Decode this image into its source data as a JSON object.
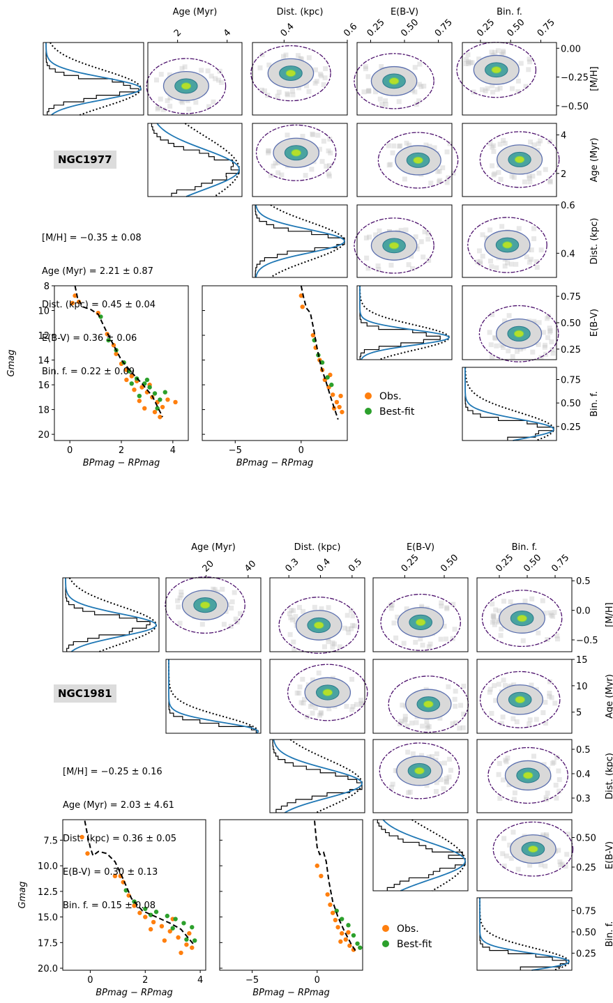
{
  "colors": {
    "observed": "#ff7f0e",
    "best_fit": "#2ca02c",
    "hist_fit": "#1f77b4",
    "isochrone": "#000000",
    "contour_outer": "#4b0f6b",
    "contour_mid": "#5b6fae"
  },
  "figures": [
    {
      "cluster": "NGC1977",
      "stats": [
        "[M/H] = −0.35 ± 0.08",
        "Age (Myr) = 2.21 ± 0.87",
        "Dist. (kpc) = 0.45 ± 0.04",
        "E(B-V) = 0.36 ± 0.06",
        "Bin. f. = 0.22 ± 0.09"
      ],
      "params": [
        {
          "label": "[M/H]",
          "range": [
            -0.58,
            0.05
          ],
          "ticks": [
            "0.00",
            "−0.25",
            "−0.50"
          ],
          "tick_values": [
            0.0,
            -0.25,
            -0.5
          ],
          "mean": -0.35,
          "sigma": 0.08
        },
        {
          "label": "Age (Myr)",
          "range": [
            0.8,
            4.6
          ],
          "ticks": [
            "2",
            "4"
          ],
          "tick_values": [
            2,
            4
          ],
          "mean": 2.21,
          "sigma": 0.87
        },
        {
          "label": "Dist. (kpc)",
          "range": [
            0.3,
            0.6
          ],
          "ticks": [
            "0.4",
            "0.6"
          ],
          "tick_values": [
            0.4,
            0.6
          ],
          "mean": 0.45,
          "sigma": 0.04
        },
        {
          "label": "E(B-V)",
          "range": [
            0.15,
            0.85
          ],
          "ticks": [
            "0.25",
            "0.50",
            "0.75"
          ],
          "tick_values": [
            0.25,
            0.5,
            0.75
          ],
          "mean": 0.36,
          "sigma": 0.06
        },
        {
          "label": "Bin. f.",
          "range": [
            0.1,
            0.88
          ],
          "ticks": [
            "0.25",
            "0.50",
            "0.75"
          ],
          "tick_values": [
            0.25,
            0.5,
            0.75
          ],
          "mean": 0.22,
          "sigma": 0.09
        }
      ],
      "cmd": {
        "ylabel": "Gmag",
        "xlabel": "BPmag − RPmag",
        "ylim": [
          20.5,
          8
        ],
        "yticks": [
          "8",
          "10",
          "12",
          "14",
          "16",
          "18",
          "20"
        ],
        "ytick_values": [
          8,
          10,
          12,
          14,
          16,
          18,
          20
        ],
        "panel1": {
          "xlim": [
            -0.6,
            4.6
          ],
          "xticks": [
            "0",
            "2",
            "4"
          ],
          "xtick_values": [
            0,
            2,
            4
          ],
          "isochrone": [
            [
              0.2,
              8.0
            ],
            [
              0.3,
              9.0
            ],
            [
              0.5,
              9.7
            ],
            [
              0.8,
              9.9
            ],
            [
              1.1,
              10.3
            ],
            [
              1.4,
              11.6
            ],
            [
              1.7,
              12.8
            ],
            [
              2.0,
              14.0
            ],
            [
              2.4,
              15.0
            ],
            [
              2.8,
              15.9
            ],
            [
              3.2,
              16.9
            ],
            [
              3.6,
              18.6
            ]
          ],
          "obs": [
            [
              0.1,
              9.4
            ],
            [
              0.2,
              8.8
            ],
            [
              0.35,
              9.3
            ],
            [
              1.1,
              10.2
            ],
            [
              1.45,
              11.9
            ],
            [
              1.7,
              12.8
            ],
            [
              1.8,
              13.5
            ],
            [
              2.0,
              14.3
            ],
            [
              2.2,
              14.8
            ],
            [
              2.4,
              15.3
            ],
            [
              2.6,
              15.7
            ],
            [
              2.8,
              16.2
            ],
            [
              3.0,
              16.6
            ],
            [
              3.2,
              17.0
            ],
            [
              3.4,
              17.4
            ],
            [
              3.6,
              17.8
            ],
            [
              3.8,
              17.2
            ],
            [
              4.1,
              17.4
            ],
            [
              3.3,
              18.2
            ],
            [
              3.5,
              18.6
            ],
            [
              2.9,
              17.9
            ],
            [
              2.7,
              17.3
            ],
            [
              2.5,
              16.4
            ],
            [
              3.1,
              16.0
            ],
            [
              2.2,
              15.6
            ]
          ],
          "fit": [
            [
              1.2,
              10.5
            ],
            [
              1.5,
              12.4
            ],
            [
              1.8,
              13.2
            ],
            [
              2.1,
              14.2
            ],
            [
              2.3,
              14.9
            ],
            [
              2.6,
              15.5
            ],
            [
              2.9,
              15.9
            ],
            [
              3.1,
              16.2
            ],
            [
              3.3,
              16.7
            ],
            [
              3.5,
              17.2
            ],
            [
              3.7,
              16.6
            ],
            [
              2.7,
              16.9
            ],
            [
              3.4,
              17.9
            ],
            [
              2.4,
              15.9
            ],
            [
              3.0,
              15.6
            ]
          ]
        },
        "panel2": {
          "xlim": [
            -7.5,
            3.5
          ],
          "xticks": [
            "−5",
            "0"
          ],
          "xtick_values": [
            -5,
            0
          ],
          "isochrone": [
            [
              0.0,
              8.0
            ],
            [
              0.2,
              9.0
            ],
            [
              0.4,
              9.8
            ],
            [
              0.7,
              10.2
            ],
            [
              0.95,
              11.5
            ],
            [
              1.2,
              13.0
            ],
            [
              1.5,
              14.5
            ],
            [
              1.9,
              15.8
            ],
            [
              2.3,
              17.2
            ],
            [
              2.8,
              18.8
            ]
          ],
          "obs": [
            [
              0.0,
              8.8
            ],
            [
              0.1,
              9.7
            ],
            [
              0.9,
              12.0
            ],
            [
              1.1,
              13.0
            ],
            [
              1.4,
              14.0
            ],
            [
              1.6,
              14.8
            ],
            [
              1.8,
              15.6
            ],
            [
              2.1,
              16.2
            ],
            [
              2.4,
              16.8
            ],
            [
              2.7,
              17.4
            ],
            [
              2.9,
              17.8
            ],
            [
              3.1,
              18.2
            ],
            [
              2.5,
              17.9
            ],
            [
              2.2,
              15.2
            ],
            [
              3.0,
              16.9
            ]
          ],
          "fit": [
            [
              1.0,
              12.4
            ],
            [
              1.3,
              13.6
            ],
            [
              1.6,
              14.2
            ],
            [
              2.0,
              15.4
            ],
            [
              2.3,
              16.0
            ]
          ]
        }
      },
      "legend": [
        "Obs.",
        "Best-fit"
      ]
    },
    {
      "cluster": "NGC1981",
      "stats": [
        "[M/H] = −0.25 ± 0.16",
        "Age (Myr) = 2.03 ± 4.61",
        "Dist. (kpc) = 0.36 ± 0.05",
        "E(B-V) = 0.30 ± 0.13",
        "Bin. f. = 0.15 ± 0.08"
      ],
      "params": [
        {
          "label": "[M/H]",
          "range": [
            -0.7,
            0.55
          ],
          "ticks": [
            "0.5",
            "0.0",
            "−0.5"
          ],
          "tick_values": [
            0.5,
            0.0,
            -0.5
          ],
          "mean": -0.25,
          "sigma": 0.16
        },
        {
          "label": "Age (Myr)",
          "range": [
            1,
            46
          ],
          "ticks": [
            "20",
            "40"
          ],
          "tick_values": [
            20,
            40
          ],
          "mean": 2.03,
          "sigma": 4.61
        },
        {
          "label": "Dist. (kpc)",
          "range": [
            0.24,
            0.54
          ],
          "ticks": [
            "0.3",
            "0.4",
            "0.5"
          ],
          "tick_values": [
            0.3,
            0.4,
            0.5
          ],
          "mean": 0.36,
          "sigma": 0.05
        },
        {
          "label": "E(B-V)",
          "range": [
            0.05,
            0.65
          ],
          "ticks": [
            "0.25",
            "0.50"
          ],
          "tick_values": [
            0.25,
            0.5
          ],
          "mean": 0.3,
          "sigma": 0.13
        },
        {
          "label": "Bin. f.",
          "range": [
            0.05,
            0.9
          ],
          "ticks": [
            "0.25",
            "0.50",
            "0.75"
          ],
          "tick_values": [
            0.25,
            0.5,
            0.75
          ],
          "mean": 0.15,
          "sigma": 0.08
        }
      ],
      "row_ticks": {
        "1": {
          "ticks": [
            "15",
            "10",
            "5"
          ],
          "tick_values": [
            15,
            10,
            5
          ],
          "range": [
            1,
            15
          ]
        }
      },
      "cmd": {
        "ylabel": "Gmag",
        "xlabel": "BPmag − RPmag",
        "ylim": [
          20.2,
          5.5
        ],
        "yticks": [
          "7.5",
          "10.0",
          "12.5",
          "15.0",
          "17.5",
          "20.0"
        ],
        "ytick_values": [
          7.5,
          10,
          12.5,
          15,
          17.5,
          20
        ],
        "panel1": {
          "xlim": [
            -1.0,
            4.2
          ],
          "xticks": [
            "0",
            "2",
            "4"
          ],
          "xtick_values": [
            0,
            2,
            4
          ],
          "isochrone": [
            [
              -0.2,
              5.6
            ],
            [
              -0.1,
              7.0
            ],
            [
              0.0,
              8.2
            ],
            [
              0.1,
              9.0
            ],
            [
              0.3,
              8.6
            ],
            [
              0.6,
              8.8
            ],
            [
              0.9,
              9.6
            ],
            [
              1.2,
              11.3
            ],
            [
              1.5,
              13.2
            ],
            [
              1.9,
              14.4
            ],
            [
              2.4,
              15.0
            ],
            [
              2.9,
              15.6
            ],
            [
              3.3,
              16.2
            ],
            [
              3.8,
              17.8
            ]
          ],
          "obs": [
            [
              -0.3,
              7.2
            ],
            [
              -0.1,
              8.8
            ],
            [
              0.9,
              11.0
            ],
            [
              1.1,
              11.0
            ],
            [
              1.2,
              11.6
            ],
            [
              1.4,
              12.9
            ],
            [
              1.6,
              13.9
            ],
            [
              1.8,
              14.6
            ],
            [
              2.0,
              15.0
            ],
            [
              2.3,
              15.5
            ],
            [
              2.6,
              15.9
            ],
            [
              2.9,
              16.4
            ],
            [
              3.2,
              17.0
            ],
            [
              3.5,
              17.7
            ],
            [
              3.7,
              18.0
            ],
            [
              3.3,
              18.5
            ],
            [
              2.7,
              17.3
            ],
            [
              2.2,
              16.2
            ],
            [
              3.0,
              15.2
            ],
            [
              3.6,
              16.6
            ]
          ],
          "fit": [
            [
              1.3,
              12.4
            ],
            [
              1.6,
              13.5
            ],
            [
              2.0,
              14.2
            ],
            [
              2.4,
              14.5
            ],
            [
              2.8,
              14.9
            ],
            [
              3.1,
              15.2
            ],
            [
              3.4,
              15.6
            ],
            [
              3.7,
              16.0
            ],
            [
              3.8,
              17.3
            ],
            [
              2.2,
              14.8
            ],
            [
              3.0,
              16.1
            ],
            [
              3.5,
              17.2
            ]
          ]
        },
        "panel2": {
          "xlim": [
            -7.5,
            3.5
          ],
          "xticks": [
            "−5",
            "0"
          ],
          "xtick_values": [
            -5,
            0
          ],
          "isochrone": [
            [
              -0.2,
              5.6
            ],
            [
              -0.1,
              7.0
            ],
            [
              0.0,
              8.2
            ],
            [
              0.2,
              8.9
            ],
            [
              0.5,
              8.7
            ],
            [
              0.7,
              9.6
            ],
            [
              0.9,
              11.5
            ],
            [
              1.2,
              13.5
            ],
            [
              1.6,
              15.0
            ],
            [
              2.1,
              16.4
            ],
            [
              2.6,
              17.6
            ],
            [
              3.0,
              18.4
            ]
          ],
          "obs": [
            [
              0.0,
              10.0
            ],
            [
              0.3,
              11.0
            ],
            [
              0.8,
              12.8
            ],
            [
              1.0,
              13.8
            ],
            [
              1.2,
              14.6
            ],
            [
              1.4,
              15.3
            ],
            [
              1.6,
              16.0
            ],
            [
              1.9,
              16.6
            ],
            [
              2.2,
              17.2
            ],
            [
              2.5,
              17.8
            ],
            [
              2.8,
              18.2
            ],
            [
              1.8,
              17.4
            ],
            [
              2.4,
              16.5
            ]
          ],
          "fit": [
            [
              1.5,
              14.4
            ],
            [
              1.9,
              15.2
            ],
            [
              2.4,
              15.8
            ],
            [
              2.8,
              16.8
            ],
            [
              3.1,
              17.6
            ],
            [
              3.3,
              18.0
            ]
          ]
        }
      },
      "legend": [
        "Obs.",
        "Best-fit"
      ]
    }
  ]
}
